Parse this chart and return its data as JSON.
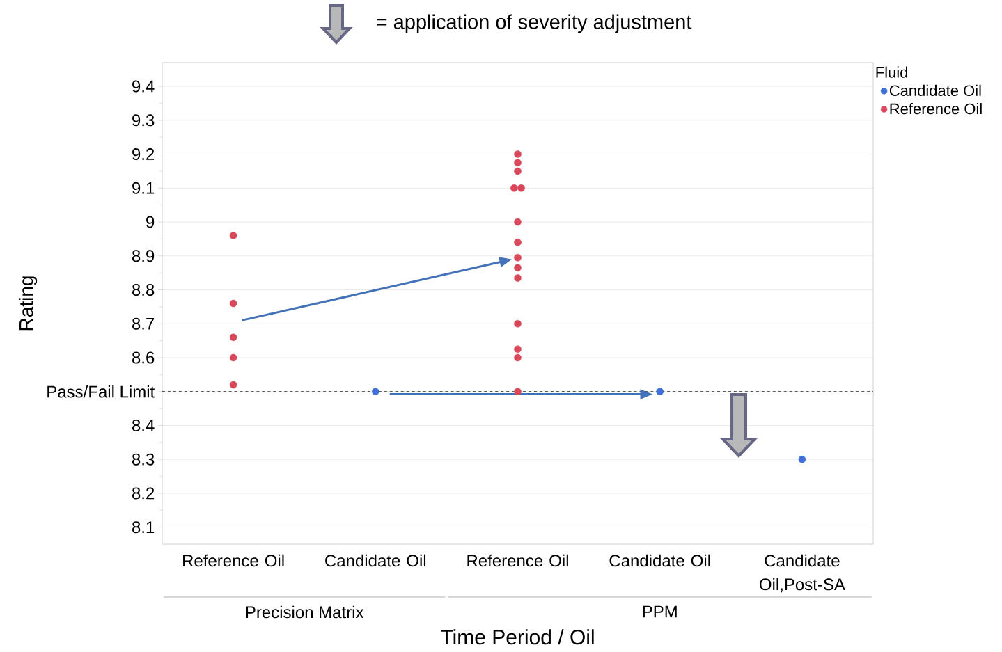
{
  "chart_data": {
    "type": "scatter",
    "title": "= application of severity adjustment",
    "xlabel": "Time Period / Oil",
    "ylabel": "Rating",
    "legend_title": "Fluid",
    "categories": [
      "Reference Oil",
      "Candidate Oil",
      "Reference Oil",
      "Candidate Oil",
      "Candidate Oil,Post-SA"
    ],
    "annotations": [
      "Precision Matrix",
      "PPM"
    ],
    "series": [
      {
        "name": "Candidate Oil",
        "color": "#3f6fd8",
        "values": [
          null,
          8.5,
          null,
          8.5,
          8.3
        ]
      },
      {
        "name": "Reference Oil",
        "color": "#d9475a",
        "values": [
          8.96,
          null,
          9.2,
          null,
          null
        ]
      },
      {
        "color": "#d9475a",
        "values": [
          8.76,
          null,
          9.175,
          null,
          null
        ]
      },
      {
        "color": "#d9475a",
        "values": [
          8.66,
          null,
          9.15,
          null,
          null
        ]
      },
      {
        "color": "#d9475a",
        "values": [
          8.6,
          null,
          9.1,
          null,
          null
        ]
      },
      {
        "color": "#d9475a",
        "values": [
          8.52,
          null,
          9.1,
          null,
          null
        ]
      },
      {
        "color": "#d9475a",
        "values": [
          null,
          null,
          9.0,
          null,
          null
        ]
      },
      {
        "color": "#d9475a",
        "values": [
          null,
          null,
          8.94,
          null,
          null
        ]
      },
      {
        "color": "#d9475a",
        "values": [
          null,
          null,
          8.895,
          null,
          null
        ]
      },
      {
        "color": "#d9475a",
        "values": [
          null,
          null,
          8.865,
          null,
          null
        ]
      },
      {
        "color": "#d9475a",
        "values": [
          null,
          null,
          8.835,
          null,
          null
        ]
      },
      {
        "color": "#d9475a",
        "values": [
          null,
          null,
          8.7,
          null,
          null
        ]
      },
      {
        "color": "#d9475a",
        "values": [
          null,
          null,
          8.625,
          null,
          null
        ]
      },
      {
        "color": "#d9475a",
        "values": [
          null,
          null,
          8.6,
          null,
          null
        ]
      },
      {
        "color": "#d9475a",
        "values": [
          null,
          null,
          8.5,
          null,
          null
        ]
      }
    ],
    "ylim": [
      8.05,
      9.47
    ],
    "yticks": [
      8.1,
      8.2,
      8.3,
      8.4,
      {
        "value": 8.5,
        "label": "Pass/Fail Limit"
      },
      8.6,
      8.7,
      8.8,
      8.9,
      9,
      9.1,
      9.2,
      9.3,
      9.4
    ],
    "ref_lines": [
      {
        "axis": "y",
        "value": 8.5,
        "color": "#000000",
        "line_style": "dashed"
      }
    ],
    "grid": "y",
    "legend": "top right"
  }
}
